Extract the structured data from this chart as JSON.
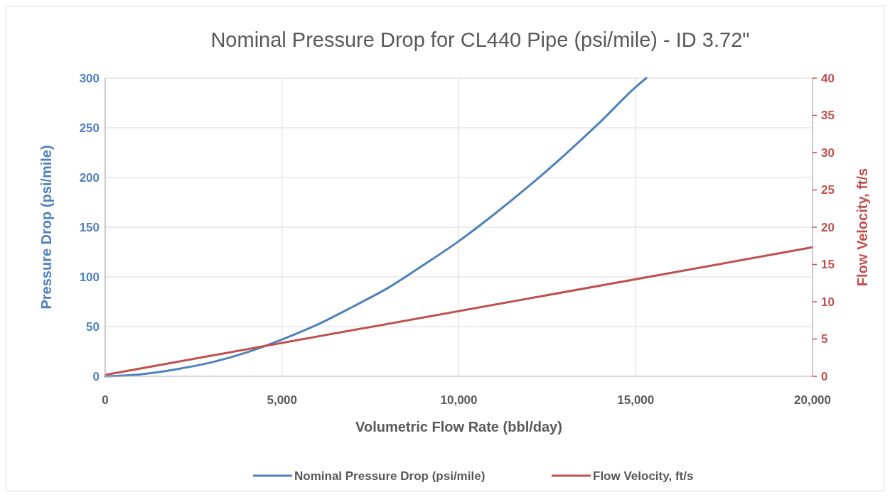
{
  "chart_data": {
    "type": "line",
    "title": "Nominal Pressure Drop for CL440 Pipe (psi/mile) - ID 3.72\"",
    "xlabel": "Volumetric Flow Rate (bbl/day)",
    "ylabel": "Pressure Drop (psi/mile)",
    "y2label": "Flow Velocity, ft/s",
    "xlim": [
      0,
      20000
    ],
    "xticks": [
      0,
      {
        "value": 5000,
        "label": "5,000"
      },
      {
        "value": 10000,
        "label": "10,000"
      },
      {
        "value": 15000,
        "label": "15,000"
      },
      {
        "value": 20000,
        "label": "20,000"
      }
    ],
    "ylim": [
      0,
      300
    ],
    "yticks": [
      0,
      50,
      100,
      150,
      200,
      250,
      300
    ],
    "y2lim": [
      0,
      40
    ],
    "y2ticks": [
      0,
      5,
      10,
      15,
      20,
      25,
      30,
      35,
      40
    ],
    "grid": true,
    "legend": "bottom",
    "marker": "none",
    "line_style": "solid",
    "series": [
      {
        "name": "Nominal Pressure Drop (psi/mile)",
        "color": "#4f81bd",
        "x": [
          0,
          1000,
          2000,
          3000,
          4000,
          5000,
          6000,
          7000,
          8000,
          9000,
          10000,
          11000,
          12000,
          13000,
          14000,
          15000,
          15300
        ],
        "values": [
          0,
          2,
          7,
          14,
          24,
          37,
          52,
          70,
          89,
          112,
          136,
          163,
          192,
          223,
          256,
          291,
          300
        ]
      },
      {
        "name": "Flow Velocity, ft/s",
        "color": "#c0504d",
        "axis": "y2",
        "x": [
          0,
          20000
        ],
        "values": [
          0.2,
          17.3
        ]
      }
    ]
  }
}
